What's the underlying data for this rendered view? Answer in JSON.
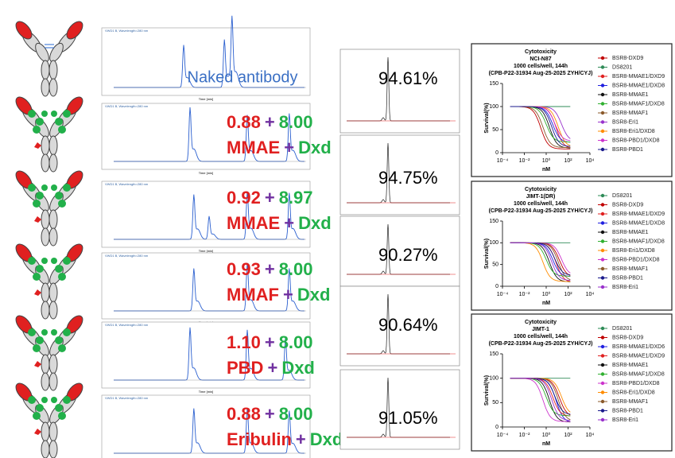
{
  "rows": [
    {
      "label": "Naked antibody"
    },
    {
      "dar1": "0.88",
      "plus": "+",
      "dar2": "8.00",
      "payload1": "MMAE",
      "plus2": "+",
      "payload2": "Dxd"
    },
    {
      "dar1": "0.92",
      "plus": "+",
      "dar2": "8.97",
      "payload1": "MMAE",
      "plus2": "+",
      "payload2": "Dxd"
    },
    {
      "dar1": "0.93",
      "plus": "+",
      "dar2": "8.00",
      "payload1": "MMAF",
      "plus2": "+",
      "payload2": "Dxd"
    },
    {
      "dar1": "1.10",
      "plus": "+",
      "dar2": "8.00",
      "payload1": "PBD",
      "plus2": "+",
      "payload2": "Dxd"
    },
    {
      "dar1": "0.88",
      "plus": "+",
      "dar2": "8.00",
      "payload1": "Eribulin",
      "plus2": "+",
      "payload2": "Dxd"
    }
  ],
  "chromatogram_header": "VWD1 B, Wavelength=280 nm",
  "chromatogram_xlabel": "Time [min]",
  "sec_purity": [
    "94.61%",
    "94.75%",
    "90.27%",
    "90.64%",
    "91.05%"
  ],
  "cytotoxicity": [
    {
      "title": "Cytotoxicity",
      "cell_line": "NCI-N87",
      "conditions": "1000 cells/well, 144h",
      "batch": "(CPB-P22-31934  Aug-25-2025 ZYH/CYJ)",
      "ylabel": "Survival(%)",
      "xlabel": "nM",
      "ylim": [
        0,
        150
      ],
      "yticks": [
        0,
        50,
        100,
        150
      ],
      "log_x": true,
      "xlim": [
        0.0001,
        10000
      ],
      "xticks": [
        {
          "value": 0.0001,
          "label": "10⁻⁴"
        },
        {
          "value": 0.01,
          "label": "10⁻²"
        },
        {
          "value": 1,
          "label": "10⁰"
        },
        {
          "value": 100,
          "label": "10²"
        },
        {
          "value": 10000,
          "label": "10⁴"
        }
      ],
      "series": [
        {
          "name": "BSR8-DXD9",
          "color": "#c00000"
        },
        {
          "name": "DS8201",
          "color": "#2e8b57"
        },
        {
          "name": "BSR8-MMAE1/DXD9",
          "color": "#e02020"
        },
        {
          "name": "BSR8-MMAE1/DXD8",
          "color": "#2020e0"
        },
        {
          "name": "BSR8-MMAE1",
          "color": "#111111"
        },
        {
          "name": "BSR8-MMAF1/DXD8",
          "color": "#30b030"
        },
        {
          "name": "BSR8-MMAF1",
          "color": "#8b5a2b"
        },
        {
          "name": "BSR8-Eri1",
          "color": "#9932cc"
        },
        {
          "name": "BSR8-Eri1/DXD8",
          "color": "#ff8c00"
        },
        {
          "name": "BSR8-PBD1/DXD8",
          "color": "#cc33cc"
        },
        {
          "name": "BSR8-PBD1",
          "color": "#1a1a8c"
        }
      ]
    },
    {
      "title": "Cytotoxicity",
      "cell_line": "JIMT-1(DR)",
      "conditions": "1000 cells/well, 144h",
      "batch": "(CPB-P22-31934  Aug-25-2025 ZYH/CYJ)",
      "ylabel": "Survival(%)",
      "xlabel": "nM",
      "ylim": [
        0,
        150
      ],
      "yticks": [
        0,
        50,
        100,
        150
      ],
      "log_x": true,
      "xlim": [
        0.0001,
        10000
      ],
      "xticks": [
        {
          "value": 0.0001,
          "label": "10⁻⁴"
        },
        {
          "value": 0.01,
          "label": "10⁻²"
        },
        {
          "value": 1,
          "label": "10⁰"
        },
        {
          "value": 100,
          "label": "10²"
        },
        {
          "value": 10000,
          "label": "10⁴"
        }
      ],
      "series": [
        {
          "name": "DS8201",
          "color": "#2e8b57"
        },
        {
          "name": "BSR8-DXD9",
          "color": "#c00000"
        },
        {
          "name": "BSR8-MMAE1/DXD9",
          "color": "#e02020"
        },
        {
          "name": "BSR8-MMAE1/DXD8",
          "color": "#2020e0"
        },
        {
          "name": "BSR8-MMAE1",
          "color": "#111111"
        },
        {
          "name": "BSR8-MMAF1/DXD8",
          "color": "#30b030"
        },
        {
          "name": "BSR8-Eri1/DXD8",
          "color": "#ff8c00"
        },
        {
          "name": "BSR8-PBD1/DXD8",
          "color": "#cc33cc"
        },
        {
          "name": "BSR8-MMAF1",
          "color": "#8b5a2b"
        },
        {
          "name": "BSR8-PBD1",
          "color": "#1a1a8c"
        },
        {
          "name": "BSR8-Eri1",
          "color": "#9932cc"
        }
      ]
    },
    {
      "title": "Cytotoxicity",
      "cell_line": "JIMT-1",
      "conditions": "1000 cells/well, 144h",
      "batch": "(CPB-P22-31934  Aug-25-2025 ZYH/CYJ)",
      "ylabel": "Survival(%)",
      "xlabel": "nM",
      "ylim": [
        0,
        150
      ],
      "yticks": [
        0,
        50,
        100,
        150
      ],
      "log_x": true,
      "xlim": [
        0.0001,
        10000
      ],
      "xticks": [
        {
          "value": 0.0001,
          "label": "10⁻⁴"
        },
        {
          "value": 0.01,
          "label": "10⁻²"
        },
        {
          "value": 1,
          "label": "10⁰"
        },
        {
          "value": 100,
          "label": "10²"
        },
        {
          "value": 10000,
          "label": "10⁴"
        }
      ],
      "series": [
        {
          "name": "DS8201",
          "color": "#2e8b57"
        },
        {
          "name": "BSR8-DXD9",
          "color": "#c00000"
        },
        {
          "name": "BSR8-MMAE1/DXD6",
          "color": "#2020e0"
        },
        {
          "name": "BSR8-MMAE1/DXD9",
          "color": "#e02020"
        },
        {
          "name": "BSR8-MMAE1",
          "color": "#111111"
        },
        {
          "name": "BSR8-MMAF1/DXD8",
          "color": "#30b030"
        },
        {
          "name": "BSR8-PBD1/DXD8",
          "color": "#cc33cc"
        },
        {
          "name": "BSR8-Eri1/DXD8",
          "color": "#ff8c00"
        },
        {
          "name": "BSR8-MMAF1",
          "color": "#8b5a2b"
        },
        {
          "name": "BSR8-PBD1",
          "color": "#1a1a8c"
        },
        {
          "name": "BSR8-Eri1",
          "color": "#9932cc"
        }
      ]
    }
  ]
}
